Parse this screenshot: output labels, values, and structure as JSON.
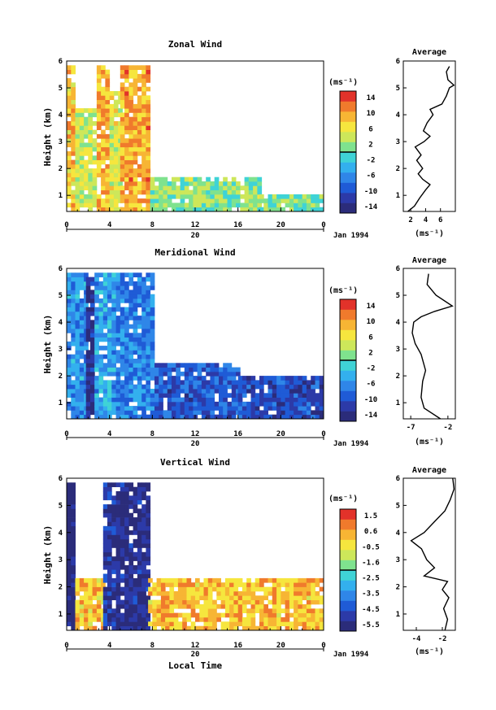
{
  "chart_data": [
    {
      "type": "heatmap",
      "title": "Zonal Wind",
      "ylabel": "Height (km)",
      "date_label": "Jan 1994",
      "x_ticks": [
        "0",
        "4",
        "8",
        "12",
        "16",
        "20",
        "0"
      ],
      "day_label": "20",
      "y_ticks": [
        "1",
        "2",
        "3",
        "4",
        "5",
        "6"
      ],
      "ylim": [
        0.4,
        6
      ],
      "colorbar": {
        "unit": "(ms⁻¹)",
        "ticks": [
          "14",
          "10",
          "6",
          "2",
          "-2",
          "-6",
          "-10",
          "-14"
        ],
        "range": [
          -16,
          16
        ]
      },
      "time_blocks": [
        {
          "t0": 0.0,
          "t1": 0.8,
          "h1": 5.8,
          "v": 8
        },
        {
          "t0": 0.8,
          "t1": 2.8,
          "h1": 4.2,
          "v": 4
        },
        {
          "t0": 2.8,
          "t1": 4.0,
          "h1": 5.8,
          "v": 9
        },
        {
          "t0": 4.0,
          "t1": 5.0,
          "h1": 4.8,
          "v": 5
        },
        {
          "t0": 5.0,
          "t1": 7.8,
          "h1": 5.8,
          "v": 10
        },
        {
          "t0": 7.8,
          "t1": 18.0,
          "h1": 1.6,
          "v": 2
        },
        {
          "t0": 18.0,
          "t1": 24.0,
          "h1": 0.9,
          "v": 1
        }
      ],
      "profile": {
        "title": "Average",
        "xlabel": "(ms⁻¹)",
        "x_ticks": [
          "2",
          "4",
          "6"
        ],
        "xlim": [
          1,
          8
        ],
        "points": [
          [
            1.6,
            0.4
          ],
          [
            2.5,
            0.6
          ],
          [
            3.2,
            0.9
          ],
          [
            4.0,
            1.2
          ],
          [
            4.6,
            1.4
          ],
          [
            3.6,
            1.6
          ],
          [
            3.0,
            1.8
          ],
          [
            3.6,
            2.0
          ],
          [
            2.8,
            2.3
          ],
          [
            3.4,
            2.5
          ],
          [
            2.6,
            2.8
          ],
          [
            3.8,
            3.0
          ],
          [
            4.6,
            3.2
          ],
          [
            3.7,
            3.4
          ],
          [
            4.2,
            3.7
          ],
          [
            5.0,
            4.0
          ],
          [
            4.6,
            4.2
          ],
          [
            6.2,
            4.4
          ],
          [
            6.8,
            4.7
          ],
          [
            7.2,
            5.0
          ],
          [
            7.8,
            5.1
          ],
          [
            7.0,
            5.3
          ],
          [
            6.8,
            5.6
          ],
          [
            7.2,
            5.8
          ]
        ]
      }
    },
    {
      "type": "heatmap",
      "title": "Meridional Wind",
      "ylabel": "Height (km)",
      "date_label": "Jan 1994",
      "x_ticks": [
        "0",
        "4",
        "8",
        "12",
        "16",
        "20",
        "0"
      ],
      "day_label": "20",
      "y_ticks": [
        "1",
        "2",
        "3",
        "4",
        "5",
        "6"
      ],
      "ylim": [
        0.4,
        6
      ],
      "colorbar": {
        "unit": "(ms⁻¹)",
        "ticks": [
          "14",
          "10",
          "6",
          "2",
          "-2",
          "-6",
          "-10",
          "-14"
        ],
        "range": [
          -16,
          16
        ]
      },
      "time_blocks": [
        {
          "t0": 0.0,
          "t1": 1.8,
          "h1": 5.8,
          "v": -6
        },
        {
          "t0": 1.8,
          "t1": 2.6,
          "h1": 5.6,
          "v": -14
        },
        {
          "t0": 2.6,
          "t1": 4.6,
          "h1": 5.8,
          "v": -5
        },
        {
          "t0": 4.6,
          "t1": 8.2,
          "h1": 5.8,
          "v": -7
        },
        {
          "t0": 8.2,
          "t1": 16.0,
          "h1": 2.4,
          "v": -10
        },
        {
          "t0": 16.0,
          "t1": 24.0,
          "h1": 2.0,
          "v": -11
        }
      ],
      "profile": {
        "title": "Average",
        "xlabel": "(ms⁻¹)",
        "x_ticks": [
          "-7",
          "-2"
        ],
        "xlim": [
          -8,
          -1
        ],
        "points": [
          [
            -3.0,
            0.4
          ],
          [
            -5.2,
            0.8
          ],
          [
            -5.6,
            1.2
          ],
          [
            -5.4,
            1.8
          ],
          [
            -5.0,
            2.2
          ],
          [
            -5.6,
            2.8
          ],
          [
            -6.4,
            3.2
          ],
          [
            -6.8,
            3.6
          ],
          [
            -6.6,
            4.0
          ],
          [
            -5.6,
            4.2
          ],
          [
            -3.8,
            4.4
          ],
          [
            -1.4,
            4.6
          ],
          [
            -3.6,
            5.0
          ],
          [
            -4.8,
            5.4
          ],
          [
            -4.6,
            5.8
          ]
        ]
      }
    },
    {
      "type": "heatmap",
      "title": "Vertical Wind",
      "ylabel": "Height (km)",
      "xlabel": "Local Time",
      "date_label": "Jan 1994",
      "x_ticks": [
        "0",
        "4",
        "8",
        "12",
        "16",
        "20",
        "0"
      ],
      "day_label": "20",
      "y_ticks": [
        "1",
        "2",
        "3",
        "4",
        "5",
        "6"
      ],
      "ylim": [
        0.4,
        6
      ],
      "colorbar": {
        "unit": "(ms⁻¹)",
        "ticks": [
          "1.5",
          "0.6",
          "-0.5",
          "-1.6",
          "-2.5",
          "-3.5",
          "-4.5",
          "-5.5"
        ],
        "range": [
          -6,
          2
        ]
      },
      "time_blocks": [
        {
          "t0": 0.0,
          "t1": 0.8,
          "h1": 5.8,
          "v": -6
        },
        {
          "t0": 0.8,
          "t1": 3.4,
          "h1": 2.2,
          "v": 0.1
        },
        {
          "t0": 3.4,
          "t1": 4.6,
          "h1": 5.8,
          "v": -5
        },
        {
          "t0": 4.6,
          "t1": 7.6,
          "h1": 5.8,
          "v": -5.5
        },
        {
          "t0": 7.6,
          "t1": 24.0,
          "h1": 2.2,
          "v": 0.2
        }
      ],
      "profile": {
        "title": "Average",
        "xlabel": "(ms⁻¹)",
        "x_ticks": [
          "-4",
          "-2"
        ],
        "xlim": [
          -5,
          -1
        ],
        "points": [
          [
            -1.8,
            0.4
          ],
          [
            -1.6,
            0.8
          ],
          [
            -1.9,
            1.2
          ],
          [
            -1.5,
            1.6
          ],
          [
            -2.0,
            1.9
          ],
          [
            -1.6,
            2.2
          ],
          [
            -3.4,
            2.4
          ],
          [
            -2.6,
            2.7
          ],
          [
            -3.2,
            3.0
          ],
          [
            -3.6,
            3.4
          ],
          [
            -4.4,
            3.7
          ],
          [
            -3.4,
            4.0
          ],
          [
            -2.6,
            4.4
          ],
          [
            -1.8,
            4.8
          ],
          [
            -1.4,
            5.2
          ],
          [
            -1.1,
            5.6
          ],
          [
            -1.2,
            6.0
          ]
        ]
      }
    }
  ]
}
